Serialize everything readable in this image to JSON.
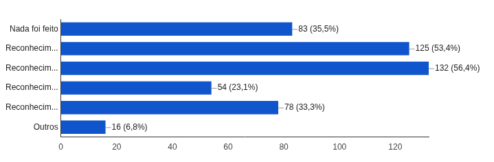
{
  "chart_data": {
    "type": "bar",
    "orientation": "horizontal",
    "categories": [
      "Nada foi feito",
      "Reconhecim...",
      "Reconhecim...",
      "Reconhecim...",
      "Reconhecim...",
      "Outros"
    ],
    "values": [
      83,
      125,
      132,
      54,
      78,
      16
    ],
    "value_labels": [
      "83 (35,5%)",
      "125 (53,4%)",
      "132 (56,4%)",
      "54 (23,1%)",
      "78 (33,3%)",
      "16 (6,8%)"
    ],
    "data_labels": true,
    "color": "#1155cc",
    "xlim": [
      0,
      132
    ],
    "xticks": [
      0,
      20,
      40,
      60,
      80,
      100,
      120
    ],
    "grid": false
  }
}
